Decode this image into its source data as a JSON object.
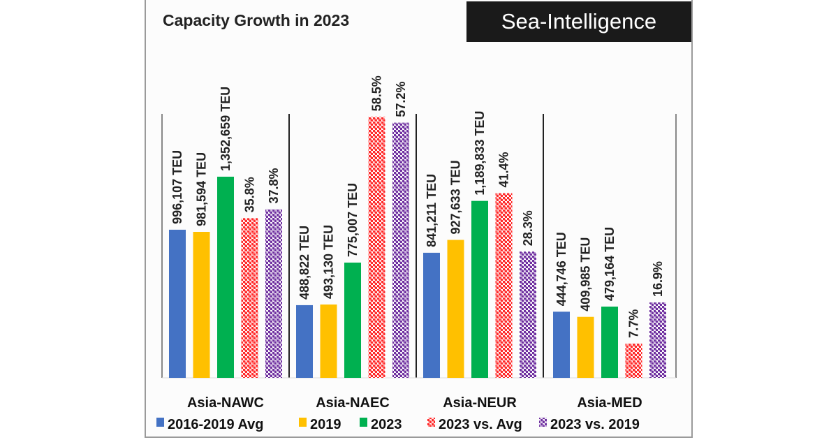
{
  "chart_data": {
    "type": "bar",
    "title": "Capacity Growth in 2023",
    "brand": "Sea-Intelligence",
    "categories": [
      "Asia-NAWC",
      "Asia-NAEC",
      "Asia-NEUR",
      "Asia-MED"
    ],
    "ylim_teu": [
      0,
      2400000
    ],
    "ylim_percent": [
      0,
      80
    ],
    "grid": false,
    "legend_position": "bottom",
    "series": [
      {
        "name": "2016-2019 Avg",
        "axis": "teu",
        "color": "#4472c4",
        "pattern": "solid",
        "values": [
          996107,
          488822,
          841211,
          444746
        ],
        "labels": [
          "996,107 TEU",
          "488,822 TEU",
          "841,211 TEU",
          "444,746 TEU"
        ]
      },
      {
        "name": "2019",
        "axis": "teu",
        "color": "#ffc000",
        "pattern": "solid",
        "values": [
          981594,
          493130,
          927633,
          409985
        ],
        "labels": [
          "981,594 TEU",
          "493,130 TEU",
          "927,633 TEU",
          "409,985 TEU"
        ]
      },
      {
        "name": "2023",
        "axis": "teu",
        "color": "#00b050",
        "pattern": "solid",
        "values": [
          1352659,
          775007,
          1189833,
          479164
        ],
        "labels": [
          "1,352,659 TEU",
          "775,007 TEU",
          "1,189,833 TEU",
          "479,164 TEU"
        ]
      },
      {
        "name": "2023 vs. Avg",
        "axis": "percent",
        "color": "#ff2a2a",
        "pattern": "checker",
        "values": [
          35.8,
          58.5,
          41.4,
          7.7
        ],
        "labels": [
          "35.8%",
          "58.5%",
          "41.4%",
          "7.7%"
        ]
      },
      {
        "name": "2023 vs. 2019",
        "axis": "percent",
        "color": "#7030a0",
        "pattern": "checker",
        "values": [
          37.8,
          57.2,
          28.3,
          16.9
        ],
        "labels": [
          "37.8%",
          "57.2%",
          "28.3%",
          "16.9%"
        ]
      }
    ]
  }
}
